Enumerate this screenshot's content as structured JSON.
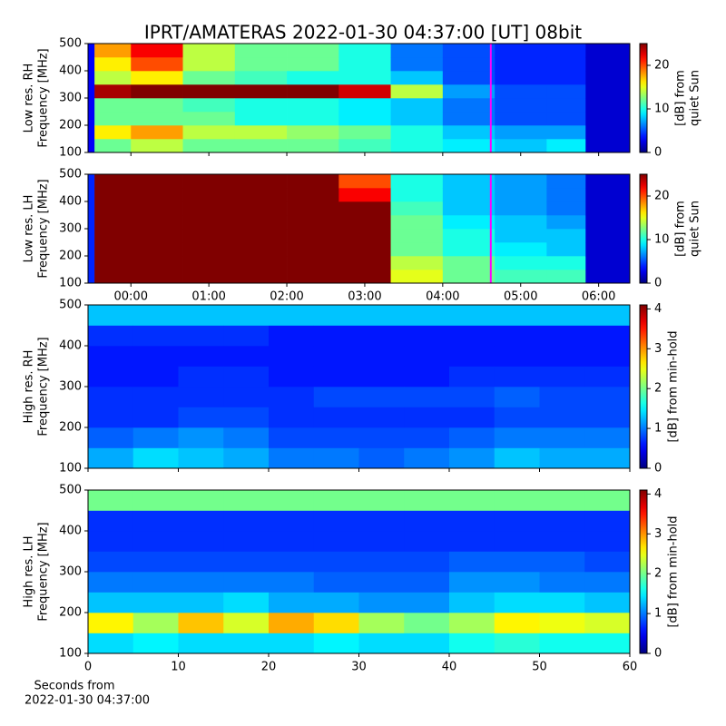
{
  "chart_data": [
    {
      "type": "heatmap",
      "title": "IPRT/AMATERAS 2022-01-30 04:37:00 [UT]   08bit",
      "ylabel": [
        "Low res. RH",
        "Frequency [MHz]"
      ],
      "xlim": [
        -33,
        384
      ],
      "xticks": [
        0,
        60,
        120,
        180,
        240,
        300,
        360
      ],
      "ylim": [
        100,
        500
      ],
      "yticks": [
        100,
        200,
        300,
        400,
        500
      ],
      "x_edges": [
        -33,
        -28,
        0,
        40,
        80,
        120,
        160,
        200,
        240,
        280,
        320,
        350,
        384
      ],
      "y_edges": [
        100,
        150,
        200,
        250,
        300,
        350,
        400,
        450,
        500
      ],
      "z": [
        [
          3,
          3,
          3,
          3,
          3,
          3,
          3,
          3
        ],
        [
          12,
          16,
          12,
          12,
          24,
          14,
          16,
          18
        ],
        [
          14,
          18,
          12,
          12,
          25,
          16,
          20,
          22
        ],
        [
          12,
          14,
          12,
          11,
          25,
          12,
          14,
          14
        ],
        [
          12,
          14,
          10,
          10,
          25,
          11,
          12,
          12
        ],
        [
          12,
          13,
          10,
          10,
          25,
          10,
          12,
          12
        ],
        [
          11,
          12,
          9,
          9,
          23,
          10,
          10,
          10
        ],
        [
          10,
          10,
          8,
          8,
          14,
          8,
          6,
          6
        ],
        [
          9,
          8,
          6,
          6,
          7,
          5,
          5,
          5
        ],
        [
          8,
          7,
          5,
          5,
          5,
          4,
          4,
          4
        ],
        [
          9,
          7,
          5,
          5,
          5,
          4,
          4,
          4
        ],
        [
          2,
          2,
          2,
          2,
          2,
          2,
          2,
          2
        ]
      ],
      "marker_x": 277,
      "marker_color": "#ff00ff",
      "colorbar": {
        "label": [
          "[dB] from",
          "quiet Sun"
        ],
        "lim": [
          0,
          25
        ],
        "ticks": [
          0,
          10,
          20
        ],
        "colormap": "jet"
      }
    },
    {
      "type": "heatmap",
      "ylabel": [
        "Low res. LH",
        "Frequency [MHz]"
      ],
      "xlim": [
        -33,
        384
      ],
      "xticks": [
        {
          "value": 0,
          "label": "00:00"
        },
        {
          "value": 60,
          "label": "01:00"
        },
        {
          "value": 120,
          "label": "02:00"
        },
        {
          "value": 180,
          "label": "03:00"
        },
        {
          "value": 240,
          "label": "04:00"
        },
        {
          "value": 300,
          "label": "05:00"
        },
        {
          "value": 360,
          "label": "06:00"
        }
      ],
      "ylim": [
        100,
        500
      ],
      "yticks": [
        100,
        200,
        300,
        400,
        500
      ],
      "x_edges": [
        -33,
        -28,
        0,
        40,
        80,
        120,
        160,
        200,
        240,
        280,
        320,
        350,
        384
      ],
      "y_edges": [
        100,
        150,
        200,
        250,
        300,
        350,
        400,
        450,
        500
      ],
      "z": [
        [
          4,
          4,
          4,
          4,
          4,
          4,
          4,
          4
        ],
        [
          25,
          25,
          25,
          25,
          25,
          25,
          25,
          25
        ],
        [
          25,
          25,
          25,
          25,
          25,
          25,
          25,
          25
        ],
        [
          25,
          25,
          25,
          25,
          25,
          25,
          25,
          25
        ],
        [
          25,
          25,
          25,
          25,
          25,
          25,
          25,
          25
        ],
        [
          25,
          25,
          25,
          25,
          25,
          25,
          25,
          25
        ],
        [
          25,
          25,
          25,
          25,
          25,
          25,
          22,
          20
        ],
        [
          15,
          14,
          12,
          12,
          12,
          11,
          10,
          10
        ],
        [
          12,
          12,
          10,
          10,
          9,
          8,
          8,
          8
        ],
        [
          11,
          10,
          9,
          8,
          8,
          7,
          7,
          7
        ],
        [
          11,
          10,
          8,
          8,
          7,
          6,
          6,
          6
        ],
        [
          2,
          2,
          2,
          2,
          2,
          2,
          2,
          2
        ]
      ],
      "marker_x": 277,
      "marker_color": "#ff00ff",
      "colorbar": {
        "label": [
          "[dB] from",
          "quiet Sun"
        ],
        "lim": [
          0,
          25
        ],
        "ticks": [
          0,
          10,
          20
        ],
        "colormap": "jet"
      }
    },
    {
      "type": "heatmap",
      "ylabel": [
        "High res. RH",
        "Frequency [MHz]"
      ],
      "xlim": [
        0,
        60
      ],
      "xticks": [
        0,
        10,
        20,
        30,
        40,
        50,
        60
      ],
      "ylim": [
        100,
        500
      ],
      "yticks": [
        100,
        200,
        300,
        400,
        500
      ],
      "x_edges": [
        0,
        5,
        10,
        15,
        20,
        25,
        30,
        35,
        40,
        45,
        50,
        55,
        60
      ],
      "y_edges": [
        100,
        150,
        200,
        250,
        300,
        350,
        400,
        450,
        500
      ],
      "z": [
        [
          1.2,
          0.9,
          0.7,
          0.7,
          0.6,
          0.6,
          0.7,
          1.3
        ],
        [
          1.4,
          1.0,
          0.7,
          0.7,
          0.6,
          0.6,
          0.7,
          1.3
        ],
        [
          1.3,
          1.1,
          0.8,
          0.7,
          0.7,
          0.6,
          0.7,
          1.3
        ],
        [
          1.2,
          1.0,
          0.8,
          0.7,
          0.7,
          0.6,
          0.7,
          1.3
        ],
        [
          1.0,
          0.8,
          0.7,
          0.7,
          0.6,
          0.6,
          0.6,
          1.3
        ],
        [
          1.0,
          0.8,
          0.7,
          0.8,
          0.6,
          0.6,
          0.6,
          1.3
        ],
        [
          0.9,
          0.8,
          0.7,
          0.8,
          0.6,
          0.6,
          0.6,
          1.3
        ],
        [
          1.0,
          0.8,
          0.7,
          0.8,
          0.6,
          0.6,
          0.6,
          1.3
        ],
        [
          1.1,
          0.9,
          0.7,
          0.8,
          0.7,
          0.6,
          0.6,
          1.3
        ],
        [
          1.3,
          1.0,
          0.8,
          0.9,
          0.7,
          0.6,
          0.6,
          1.3
        ],
        [
          1.2,
          1.0,
          0.8,
          0.8,
          0.7,
          0.6,
          0.6,
          1.3
        ],
        [
          1.2,
          1.0,
          0.8,
          0.8,
          0.7,
          0.6,
          0.6,
          1.3
        ]
      ],
      "colorbar": {
        "label": [
          "[dB] from min-hold"
        ],
        "lim": [
          0,
          4.1
        ],
        "ticks": [
          0,
          1,
          2,
          3,
          4
        ],
        "colormap": "jet"
      }
    },
    {
      "type": "heatmap",
      "ylabel": [
        "High res. LH",
        "Frequency [MHz]"
      ],
      "xlabel": [
        "Seconds from",
        "2022-01-30 04:37:00"
      ],
      "xlim": [
        0,
        60
      ],
      "xticks": [
        0,
        10,
        20,
        30,
        40,
        50,
        60
      ],
      "ylim": [
        100,
        500
      ],
      "yticks": [
        100,
        200,
        300,
        400,
        500
      ],
      "x_edges": [
        0,
        5,
        10,
        15,
        20,
        25,
        30,
        35,
        40,
        45,
        50,
        55,
        60
      ],
      "y_edges": [
        100,
        150,
        200,
        250,
        300,
        350,
        400,
        450,
        500
      ],
      "z": [
        [
          1.4,
          2.6,
          1.3,
          1.0,
          0.8,
          0.7,
          0.7,
          2.0
        ],
        [
          1.5,
          2.2,
          1.3,
          1.0,
          0.8,
          0.7,
          0.7,
          2.0
        ],
        [
          1.4,
          2.8,
          1.3,
          1.0,
          0.8,
          0.7,
          0.7,
          2.0
        ],
        [
          1.4,
          2.4,
          1.4,
          1.0,
          0.8,
          0.7,
          0.7,
          2.0
        ],
        [
          1.4,
          2.9,
          1.2,
          1.0,
          0.8,
          0.7,
          0.7,
          2.0
        ],
        [
          1.5,
          2.7,
          1.2,
          0.9,
          0.8,
          0.7,
          0.7,
          2.0
        ],
        [
          1.4,
          2.2,
          1.1,
          0.9,
          0.8,
          0.7,
          0.7,
          2.0
        ],
        [
          1.4,
          2.0,
          1.1,
          0.9,
          0.8,
          0.7,
          0.7,
          2.0
        ],
        [
          1.6,
          2.2,
          1.3,
          1.1,
          0.9,
          0.7,
          0.7,
          2.0
        ],
        [
          1.7,
          2.6,
          1.4,
          1.1,
          0.9,
          0.7,
          0.7,
          2.0
        ],
        [
          1.6,
          2.5,
          1.4,
          1.0,
          0.9,
          0.7,
          0.7,
          2.0
        ],
        [
          1.6,
          2.4,
          1.3,
          1.0,
          0.8,
          0.7,
          0.7,
          2.0
        ]
      ],
      "colorbar": {
        "label": [
          "[dB] from min-hold"
        ],
        "lim": [
          0,
          4.1
        ],
        "ticks": [
          0,
          1,
          2,
          3,
          4
        ],
        "colormap": "jet"
      }
    }
  ]
}
